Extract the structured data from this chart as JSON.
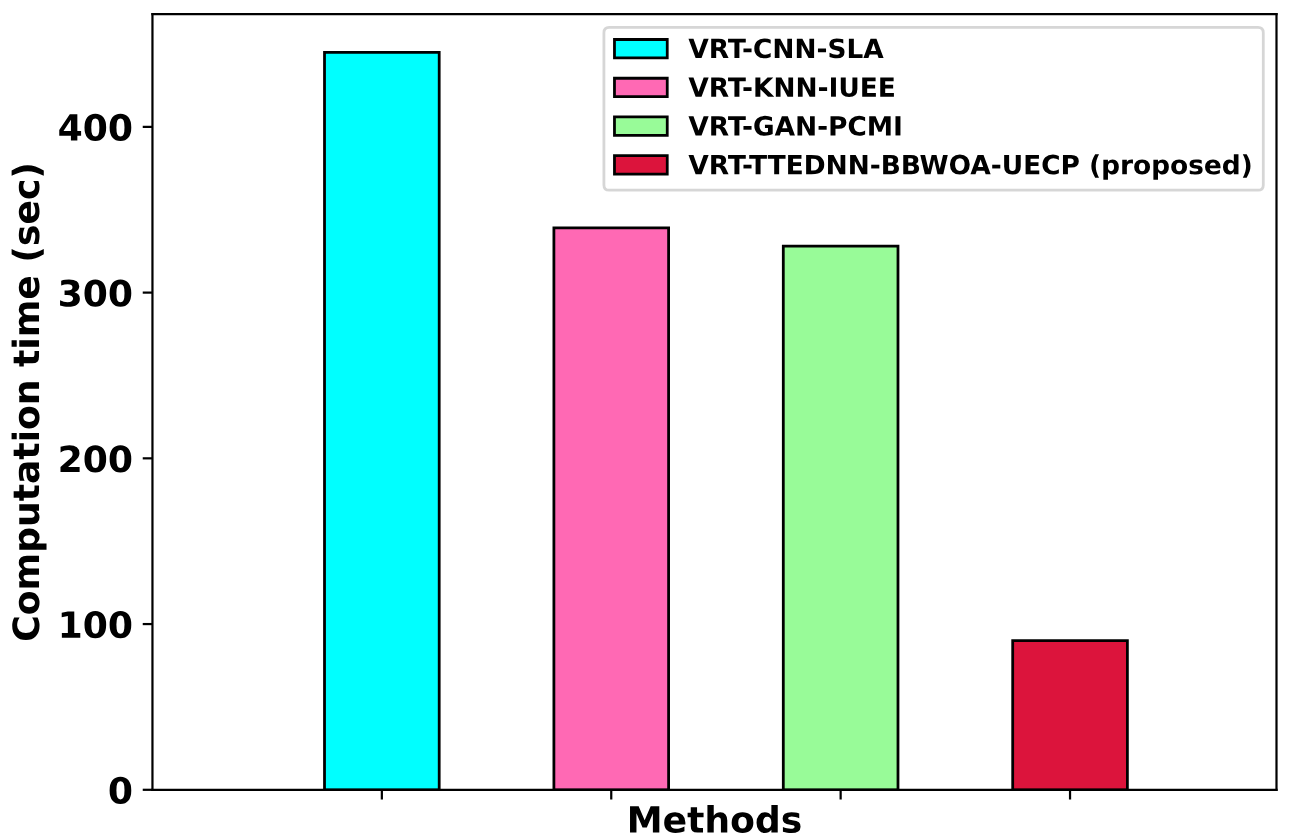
{
  "chart_data": {
    "type": "bar",
    "xlabel": "Methods",
    "ylabel": "Computation time (sec)",
    "categories": [
      null,
      null,
      null,
      null
    ],
    "series": [
      {
        "name": "VRT-CNN-SLA",
        "color": "#00ffff",
        "values": [
          445,
          null,
          null,
          null
        ]
      },
      {
        "name": "VRT-KNN-IUEE",
        "color": "#ff69b4",
        "values": [
          null,
          339,
          null,
          null
        ]
      },
      {
        "name": "VRT-GAN-PCMI",
        "color": "#98fb98",
        "values": [
          null,
          null,
          328,
          null
        ]
      },
      {
        "name": "VRT-TTEDNN-BBWOA-UECP (proposed)",
        "color": "#dc143c",
        "values": [
          null,
          null,
          null,
          90
        ]
      }
    ],
    "ylim": [
      0,
      468
    ],
    "yticks": [
      0,
      100,
      200,
      300,
      400
    ],
    "grid": false,
    "legend": "top right",
    "tick_labels": "y"
  }
}
